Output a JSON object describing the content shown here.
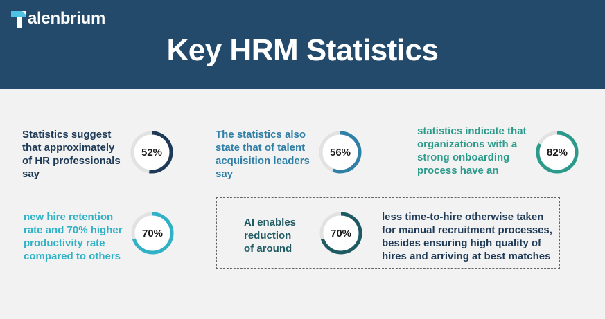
{
  "brand": {
    "name": "alenbrium"
  },
  "title": "Key HRM Statistics",
  "stats": [
    {
      "text": [
        "Statistics suggest",
        "that approximately",
        "of HR professionals",
        "say"
      ],
      "percent": "52%",
      "value": 52,
      "color": "#1e3a56"
    },
    {
      "text": [
        "The statistics also",
        "state that of talent",
        "acquisition leaders",
        "say"
      ],
      "percent": "56%",
      "value": 56,
      "color": "#2f7fa6"
    },
    {
      "text": [
        "statistics indicate that",
        "organizations with a",
        "strong onboarding",
        "process have an"
      ],
      "percent": "82%",
      "value": 82,
      "color": "#2b9a8a"
    },
    {
      "text": [
        "new hire retention",
        "rate and 70% higher",
        "productivity rate",
        "compared to others"
      ],
      "percent": "70%",
      "value": 70,
      "color": "#2fb1c6"
    }
  ],
  "ai": {
    "left": [
      "AI enables",
      "reduction",
      "of around"
    ],
    "percent": "70%",
    "value": 70,
    "color": "#1e5a62",
    "right": [
      "less time-to-hire otherwise taken",
      "for manual recruitment processes,",
      "besides ensuring high quality of",
      "hires and arriving at best matches"
    ]
  },
  "colors": {
    "header": "#234a6b",
    "background": "#f2f2f2",
    "ring_track": "#e2e2e2"
  }
}
